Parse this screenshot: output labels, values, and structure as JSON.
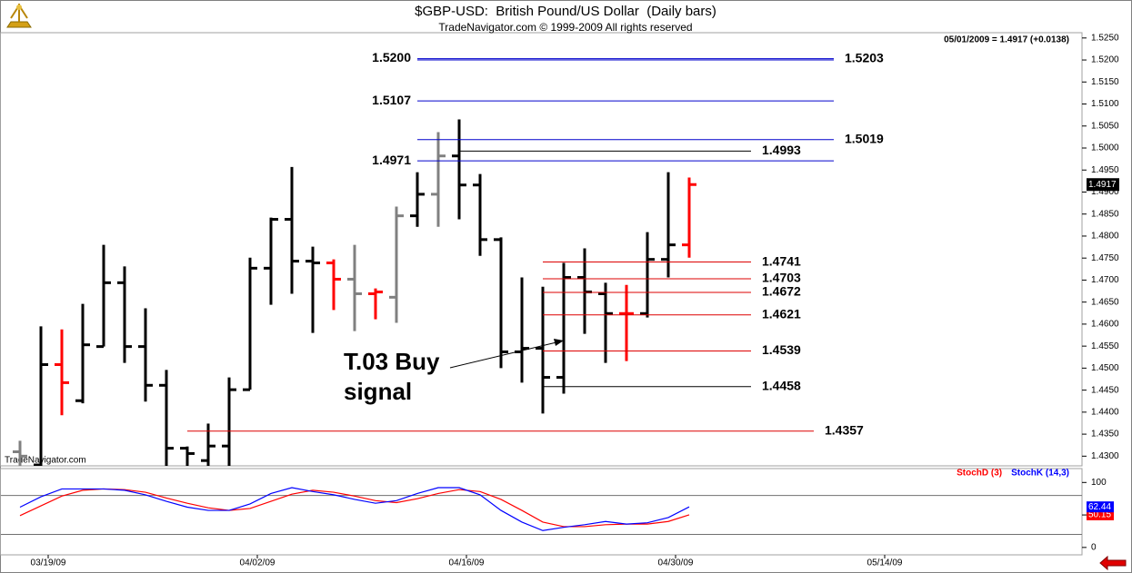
{
  "chart_data": [
    {
      "type": "ohlc",
      "title": "$GBP-USD:  British Pound/US Dollar  (Daily bars)",
      "subtitle": "TradeNavigator.com © 1999-2009 All rights reserved",
      "quote": "05/01/2009 = 1.4917 (+0.0138)",
      "watermark": "TradeNavigator.com",
      "annotation": [
        "T.03 Buy",
        "signal"
      ],
      "categories": [
        null,
        "03/19/09",
        null,
        null,
        null,
        null,
        null,
        null,
        null,
        null,
        null,
        "04/02/09",
        null,
        null,
        null,
        null,
        null,
        null,
        null,
        null,
        null,
        "04/16/09",
        null,
        null,
        null,
        null,
        null,
        null,
        null,
        null,
        null,
        "04/30/09",
        null,
        null,
        null,
        null,
        null,
        null,
        null,
        null,
        null,
        "05/14/09",
        null,
        null,
        null,
        null,
        null,
        null,
        null,
        null,
        null
      ],
      "open": [
        1.431,
        1.428,
        1.4508,
        1.4426,
        1.4549,
        1.4694,
        1.4549,
        1.4461,
        1.4318,
        1.429,
        1.4323,
        1.4451,
        1.4727,
        1.4838,
        1.4743,
        1.4739,
        1.4702,
        1.4669,
        1.4661,
        1.4846,
        1.4895,
        1.4982,
        1.4916,
        1.4792,
        1.4537,
        1.4545,
        1.4479,
        1.4706,
        1.4669,
        1.4624,
        1.4624,
        1.4747,
        1.478,
        null,
        null,
        null,
        null,
        null,
        null,
        null,
        null,
        null,
        null,
        null,
        null,
        null,
        null,
        null,
        null,
        null,
        null
      ],
      "high": [
        1.4335,
        1.4595,
        1.4588,
        1.4646,
        1.478,
        1.4731,
        1.4636,
        1.4496,
        1.4322,
        1.4374,
        1.4479,
        1.4751,
        1.4842,
        1.4957,
        1.4776,
        1.4747,
        1.478,
        1.4681,
        1.4867,
        1.4945,
        1.5036,
        1.5065,
        1.4941,
        1.4797,
        1.4706,
        1.4685,
        1.4739,
        1.4772,
        1.4694,
        1.4689,
        1.4809,
        1.4945,
        1.4933,
        null,
        null,
        null,
        null,
        null,
        null,
        null,
        null,
        null,
        null,
        null,
        null,
        null,
        null,
        null,
        null,
        null,
        null
      ],
      "low": [
        1.425,
        1.426,
        1.4393,
        1.442,
        1.4549,
        1.4512,
        1.4424,
        1.427,
        1.427,
        1.4265,
        1.4265,
        1.4451,
        1.4644,
        1.4669,
        1.458,
        1.4632,
        1.4584,
        1.4611,
        1.4603,
        1.4821,
        1.4821,
        1.4838,
        1.4755,
        1.45,
        1.4467,
        1.4397,
        1.4442,
        1.4578,
        1.4512,
        1.4516,
        1.4615,
        1.4706,
        1.4751,
        null,
        null,
        null,
        null,
        null,
        null,
        null,
        null,
        null,
        null,
        null,
        null,
        null,
        null,
        null,
        null,
        null,
        null
      ],
      "close": [
        1.43,
        1.4508,
        1.4467,
        1.4553,
        1.4694,
        1.4549,
        1.4461,
        1.4318,
        1.4306,
        1.4323,
        1.4451,
        1.4727,
        1.4838,
        1.4743,
        1.4739,
        1.4702,
        1.4669,
        1.4673,
        1.4846,
        1.4895,
        1.4982,
        1.4916,
        1.4792,
        1.4537,
        1.4545,
        1.4479,
        1.4706,
        1.4673,
        1.4624,
        1.4624,
        1.4747,
        1.478,
        1.4917,
        null,
        null,
        null,
        null,
        null,
        null,
        null,
        null,
        null,
        null,
        null,
        null,
        null,
        null,
        null,
        null,
        null,
        null
      ],
      "colors": [
        "#808080",
        "#000000",
        "#ff0000",
        "#000000",
        "#000000",
        "#000000",
        "#000000",
        "#000000",
        "#000000",
        "#000000",
        "#000000",
        "#000000",
        "#000000",
        "#000000",
        "#000000",
        "#ff0000",
        "#808080",
        "#ff0000",
        "#808080",
        "#000000",
        "#808080",
        "#000000",
        "#000000",
        "#000000",
        "#000000",
        "#000000",
        "#000000",
        "#000000",
        "#000000",
        "#ff0000",
        "#000000",
        "#000000",
        "#ff0000",
        null,
        null,
        null,
        null,
        null,
        null,
        null,
        null,
        null,
        null,
        null,
        null,
        null,
        null,
        null,
        null,
        null,
        null
      ],
      "ylim": [
        1.4278,
        1.5262
      ],
      "yticks": [
        {
          "value": 1.525,
          "label": "1.5250"
        },
        {
          "value": 1.52,
          "label": "1.5200"
        },
        {
          "value": 1.515,
          "label": "1.5150"
        },
        {
          "value": 1.51,
          "label": "1.5100"
        },
        {
          "value": 1.505,
          "label": "1.5050"
        },
        {
          "value": 1.5,
          "label": "1.5000"
        },
        {
          "value": 1.495,
          "label": "1.4950"
        },
        {
          "value": 1.49,
          "label": "1.4900"
        },
        {
          "value": 1.485,
          "label": "1.4850"
        },
        {
          "value": 1.48,
          "label": "1.4800"
        },
        {
          "value": 1.475,
          "label": "1.4750"
        },
        {
          "value": 1.47,
          "label": "1.4700"
        },
        {
          "value": 1.465,
          "label": "1.4650"
        },
        {
          "value": 1.46,
          "label": "1.4600"
        },
        {
          "value": 1.455,
          "label": "1.4550"
        },
        {
          "value": 1.45,
          "label": "1.4500"
        },
        {
          "value": 1.445,
          "label": "1.4450"
        },
        {
          "value": 1.44,
          "label": "1.4400"
        },
        {
          "value": 1.435,
          "label": "1.4350"
        },
        {
          "value": 1.43,
          "label": "1.4300"
        }
      ],
      "levels": [
        {
          "value": 1.52,
          "label": "1.5200",
          "color": "#0000cc"
        },
        {
          "value": 1.5203,
          "label": "1.5203",
          "color": "#0000cc"
        },
        {
          "value": 1.5107,
          "label": "1.5107",
          "color": "#0000cc"
        },
        {
          "value": 1.5019,
          "label": "1.5019",
          "color": "#0000cc"
        },
        {
          "value": 1.4993,
          "label": "1.4993",
          "color": "#000000"
        },
        {
          "value": 1.4971,
          "label": "1.4971",
          "color": "#0000cc"
        },
        {
          "value": 1.4741,
          "label": "1.4741",
          "color": "#dd0000"
        },
        {
          "value": 1.4703,
          "label": "1.4703",
          "color": "#dd0000"
        },
        {
          "value": 1.4672,
          "label": "1.4672",
          "color": "#dd0000"
        },
        {
          "value": 1.4621,
          "label": "1.4621",
          "color": "#dd0000"
        },
        {
          "value": 1.4539,
          "label": "1.4539",
          "color": "#dd0000"
        },
        {
          "value": 1.4458,
          "label": "1.4458",
          "color": "#000000"
        },
        {
          "value": 1.4357,
          "label": "1.4357",
          "color": "#dd0000"
        }
      ]
    },
    {
      "type": "line",
      "ylim": [
        -10,
        120
      ],
      "yticks": [
        0,
        50,
        100
      ],
      "grid_lines": [
        20,
        80
      ],
      "series": [
        {
          "name": "StochD (3)",
          "color": "#ff0000",
          "values": [
            49,
            64,
            79,
            88,
            90,
            89,
            85,
            76,
            68,
            61,
            57,
            60,
            71,
            82,
            88,
            85,
            79,
            72,
            69,
            75,
            83,
            89,
            86,
            74,
            57,
            39,
            32,
            32,
            35,
            36,
            36,
            40,
            50.15,
            null,
            null,
            null,
            null,
            null,
            null,
            null,
            null,
            null,
            null,
            null,
            null,
            null,
            null,
            null,
            null,
            null,
            null
          ]
        },
        {
          "name": "StochK (14,3)",
          "color": "#0000ff",
          "values": [
            62,
            78,
            90,
            90,
            90,
            88,
            81,
            71,
            62,
            57,
            57,
            67,
            83,
            92,
            86,
            81,
            74,
            68,
            72,
            83,
            92,
            92,
            81,
            57,
            39,
            26,
            31,
            35,
            40,
            36,
            38,
            46,
            62.44,
            null,
            null,
            null,
            null,
            null,
            null,
            null,
            null,
            null,
            null,
            null,
            null,
            null,
            null,
            null,
            null,
            null,
            null
          ]
        }
      ]
    }
  ]
}
